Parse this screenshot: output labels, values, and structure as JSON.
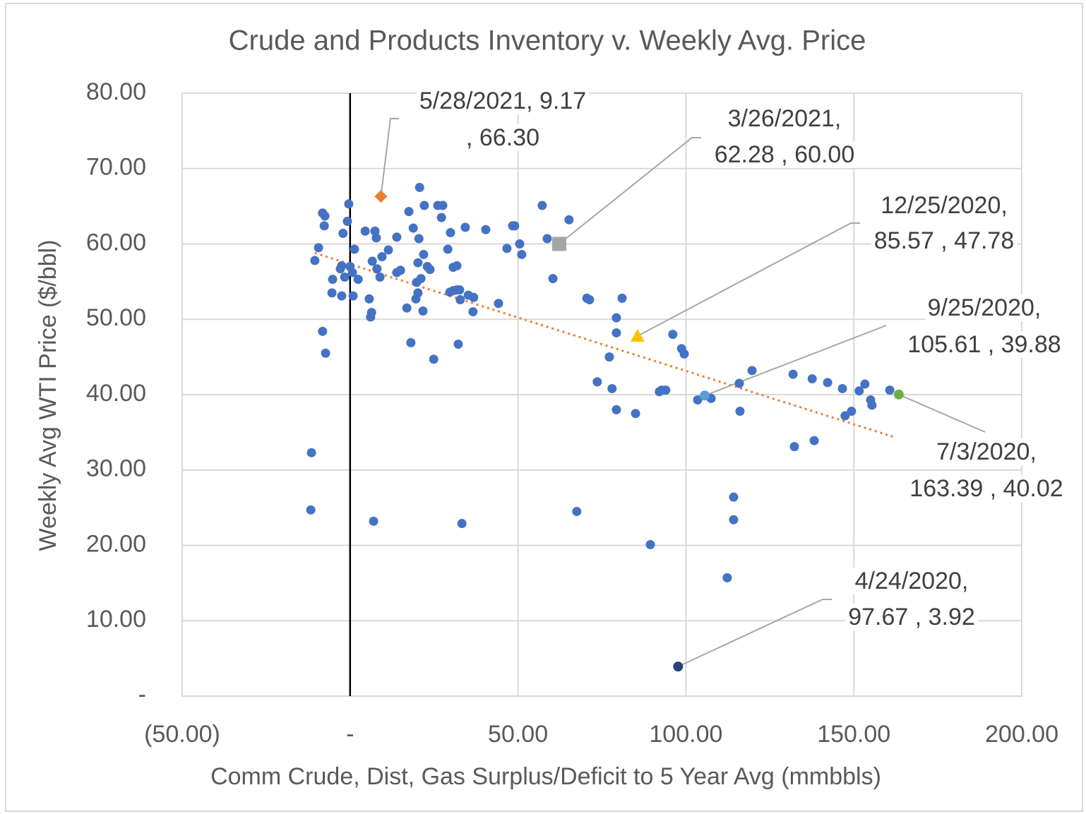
{
  "chart_data": {
    "type": "scatter",
    "title": "Crude and Products Inventory v.  Weekly Avg. Price",
    "x_label": "Comm Crude, Dist, Gas Surplus/Deficit to 5 Year Avg (mmbbls)",
    "y_label": "Weekly Avg WTI Price ($/bbl)",
    "xlim": [
      -50,
      200
    ],
    "xticks": [
      {
        "value": -50,
        "label": "(50.00)"
      },
      {
        "value": 0,
        "label": "-"
      },
      {
        "value": 50,
        "label": "50.00"
      },
      {
        "value": 100,
        "label": "100.00"
      },
      {
        "value": 150,
        "label": "150.00"
      },
      {
        "value": 200,
        "label": "200.00"
      }
    ],
    "ylim": [
      0,
      80
    ],
    "yticks": [
      {
        "value": 0,
        "label": "-"
      },
      {
        "value": 10,
        "label": "10.00"
      },
      {
        "value": 20,
        "label": "20.00"
      },
      {
        "value": 30,
        "label": "30.00"
      },
      {
        "value": 40,
        "label": "40.00"
      },
      {
        "value": 50,
        "label": "50.00"
      },
      {
        "value": 60,
        "label": "60.00"
      },
      {
        "value": 70,
        "label": "70.00"
      },
      {
        "value": 80,
        "label": "80.00"
      }
    ],
    "grid": true,
    "trendline": {
      "color": "#ed7d31",
      "x": [
        -10.5,
        161.8
      ],
      "values": [
        58.8,
        34.4
      ]
    },
    "series": [
      {
        "color": "#4472c4",
        "marker": "circle",
        "x": [
          -11.5,
          -11.7,
          7.0,
          33.3,
          67.5,
          89.4,
          112.3,
          114.2,
          114.2,
          -7.3,
          -8.2,
          -10.5,
          -9.4,
          -8.2,
          -7.5,
          -7.7,
          -0.4,
          -0.8,
          -2.1,
          -5.2,
          -5.4,
          -2.5,
          -2.5,
          -2.9,
          -1.6,
          0.0,
          0.7,
          0.9,
          1.3,
          2.4,
          4.5,
          7.4,
          7.8,
          6.6,
          8.0,
          8.9,
          9.5,
          11.4,
          5.7,
          6.4,
          6.1,
          13.9,
          13.9,
          15.0,
          17.5,
          18.8,
          19.8,
          19.6,
          20.7,
          20.5,
          20.2,
          21.1,
          21.9,
          22.1,
          23.0,
          23.8,
          20.2,
          21.7,
          16.9,
          18.1,
          24.9,
          26.1,
          27.6,
          27.2,
          29.9,
          29.1,
          30.7,
          31.8,
          29.7,
          30.7,
          31.8,
          32.6,
          32.8,
          35.2,
          36.8,
          36.6,
          32.2,
          34.3,
          40.4,
          44.2,
          46.7,
          48.4,
          49.0,
          50.5,
          51.1,
          57.2,
          58.7,
          65.2,
          60.4,
          70.5,
          71.3,
          81.0,
          79.3,
          79.3,
          77.2,
          73.6,
          78.0,
          79.3,
          85.0,
          96.1,
          98.7,
          99.5,
          92.1,
          92.8,
          94.0,
          103.5,
          107.5,
          115.9,
          116.1,
          119.7,
          131.9,
          137.6,
          142.2,
          146.6,
          151.6,
          153.3,
          155.0,
          155.4,
          147.4,
          149.3,
          160.7,
          132.3,
          138.2
        ],
        "values": [
          32.3,
          24.7,
          23.2,
          22.9,
          24.5,
          20.1,
          15.7,
          26.4,
          23.4,
          45.5,
          48.4,
          57.8,
          59.5,
          64.1,
          63.7,
          62.4,
          65.3,
          63.0,
          61.4,
          55.3,
          53.5,
          53.1,
          57.1,
          56.7,
          55.6,
          57.0,
          56.2,
          53.1,
          59.3,
          55.3,
          61.7,
          61.7,
          60.8,
          57.7,
          56.7,
          55.6,
          58.3,
          59.2,
          52.7,
          50.9,
          50.3,
          60.9,
          56.2,
          56.5,
          64.3,
          62.1,
          54.9,
          52.7,
          67.5,
          60.7,
          57.5,
          55.4,
          58.6,
          65.1,
          57.0,
          56.6,
          53.5,
          51.1,
          51.5,
          46.9,
          44.7,
          65.1,
          65.1,
          63.5,
          61.5,
          59.3,
          56.9,
          57.1,
          53.6,
          53.8,
          53.9,
          53.9,
          52.6,
          53.2,
          52.9,
          51.0,
          46.7,
          62.2,
          61.9,
          52.1,
          59.4,
          62.4,
          62.4,
          60.0,
          58.6,
          65.1,
          60.7,
          63.2,
          55.4,
          52.8,
          52.6,
          52.8,
          50.2,
          48.2,
          45.0,
          41.7,
          40.8,
          38.0,
          37.5,
          48.0,
          46.1,
          45.4,
          40.4,
          40.6,
          40.6,
          39.3,
          39.5,
          41.5,
          37.8,
          43.2,
          42.7,
          42.1,
          41.6,
          40.8,
          40.5,
          41.4,
          39.3,
          38.6,
          37.2,
          37.8,
          40.6,
          33.1,
          33.9
        ]
      },
      {
        "color": "#ed7d31",
        "marker": "diamond",
        "x": [
          9.17
        ],
        "values": [
          66.3
        ],
        "label_lines": [
          "5/28/2021,  9.17",
          ",  66.30"
        ]
      },
      {
        "color": "#a5a5a5",
        "marker": "square",
        "x": [
          62.28
        ],
        "values": [
          60.0
        ],
        "label_lines": [
          "3/26/2021,",
          "62.28 ,  60.00"
        ]
      },
      {
        "color": "#ffc000",
        "marker": "triangle",
        "x": [
          85.57
        ],
        "values": [
          47.78
        ],
        "label_lines": [
          "12/25/2020,",
          "85.57 ,  47.78"
        ]
      },
      {
        "color": "#5b9bd5",
        "marker": "circle",
        "x": [
          105.61
        ],
        "values": [
          39.88
        ],
        "label_lines": [
          "9/25/2020,",
          "105.61 ,  39.88"
        ]
      },
      {
        "color": "#70ad47",
        "marker": "circle",
        "x": [
          163.39
        ],
        "values": [
          40.02
        ],
        "label_lines": [
          "7/3/2020,",
          "163.39 ,  40.02"
        ]
      },
      {
        "color": "#264478",
        "marker": "circle",
        "x": [
          97.67
        ],
        "values": [
          3.92
        ],
        "label_lines": [
          "4/24/2020,",
          "97.67 ,  3.92"
        ]
      }
    ]
  }
}
